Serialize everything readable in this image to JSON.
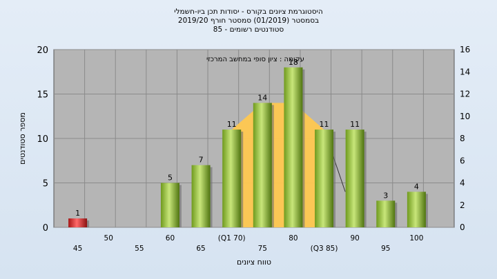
{
  "header": {
    "line1": "היסטוגרמת ציונים בקורס - יסודות תכן ביו-חשמלי",
    "line2": "בסמסטר (01/2019) סמסטר חורף 2019/20",
    "line3": "סטודנטים רשומים - 85"
  },
  "chart_data": {
    "type": "bar",
    "title": "היסטוגרמת ציונים בקורס - יסודות תכן ביו-חשמלי",
    "legend_text": "עקומה : ציון סופי במחשב המרכזי",
    "xlabel": "טווח ציונים",
    "ylabel": "מספר סטודנטים",
    "ylim": [
      0,
      20
    ],
    "y_ticks": [
      0,
      5,
      10,
      15,
      20
    ],
    "y2lim": [
      0,
      16
    ],
    "y2_ticks": [
      0,
      2,
      4,
      6,
      8,
      10,
      12,
      14,
      16
    ],
    "categories": [
      "45",
      "50",
      "55",
      "60",
      "65",
      "(Q1 70)",
      "75",
      "80",
      "(Q3 85)",
      "90",
      "95",
      "100"
    ],
    "values": [
      1,
      0,
      0,
      5,
      7,
      11,
      14,
      18,
      11,
      11,
      3,
      4
    ],
    "bar_colors": [
      "#d42a2a",
      "#9acb3c",
      "#9acb3c",
      "#9acb3c",
      "#9acb3c",
      "#9acb3c",
      "#9acb3c",
      "#9acb3c",
      "#9acb3c",
      "#9acb3c",
      "#9acb3c",
      "#9acb3c"
    ],
    "area_values": [
      0,
      0,
      0,
      0,
      0,
      11,
      14,
      14,
      11,
      0,
      0,
      0
    ],
    "area_color": "#ffc850",
    "plot_bg": "#b5b5b5",
    "grid": true
  }
}
